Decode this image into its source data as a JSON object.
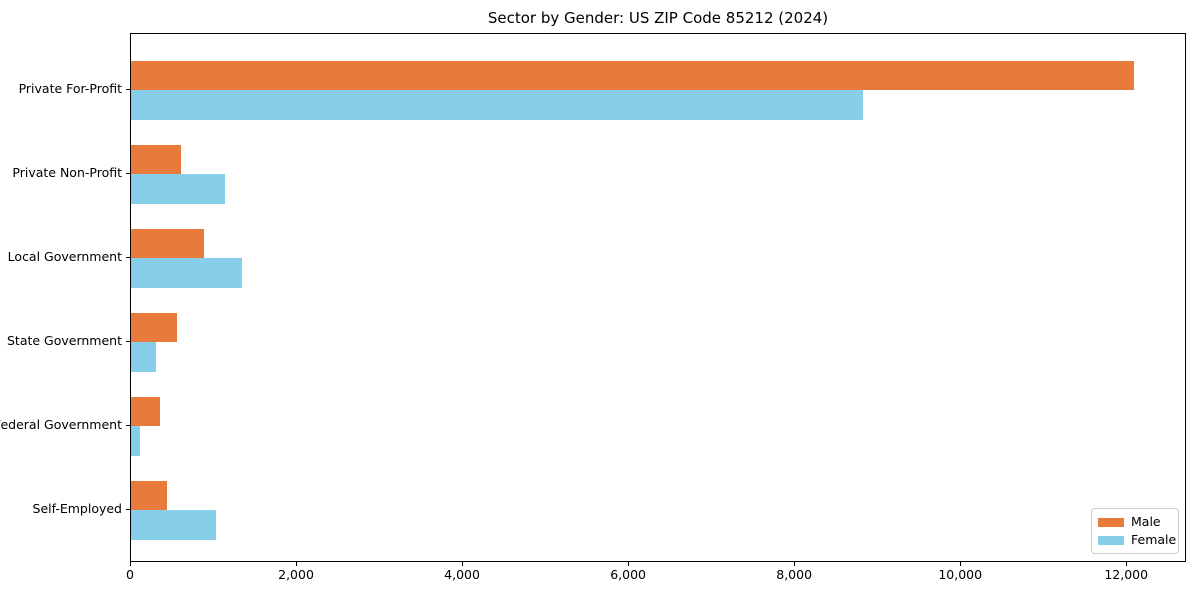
{
  "chart_data": {
    "type": "bar",
    "orientation": "horizontal",
    "title": "Sector by Gender: US ZIP Code 85212 (2024)",
    "categories": [
      "Private For-Profit",
      "Private Non-Profit",
      "Local Government",
      "State Government",
      "Federal Government",
      "Self-Employed"
    ],
    "series": [
      {
        "name": "Male",
        "color": "#E87A3C",
        "values": [
          12100,
          600,
          885,
          555,
          350,
          430
        ]
      },
      {
        "name": "Female",
        "color": "#87CEEB",
        "values": [
          8830,
          1130,
          1340,
          300,
          110,
          1030
        ]
      }
    ],
    "xlabel": "",
    "ylabel": "",
    "xlim": [
      0,
      12720
    ],
    "xticks": [
      0,
      2000,
      4000,
      6000,
      8000,
      10000,
      12000
    ],
    "xtick_labels": [
      "0",
      "2,000",
      "4,000",
      "6,000",
      "8,000",
      "10,000",
      "12,000"
    ],
    "grid": false,
    "legend_position": "lower right",
    "background_color": "#ffffff",
    "axis_color": "#000000",
    "legend_border_color": "#cccccc"
  }
}
